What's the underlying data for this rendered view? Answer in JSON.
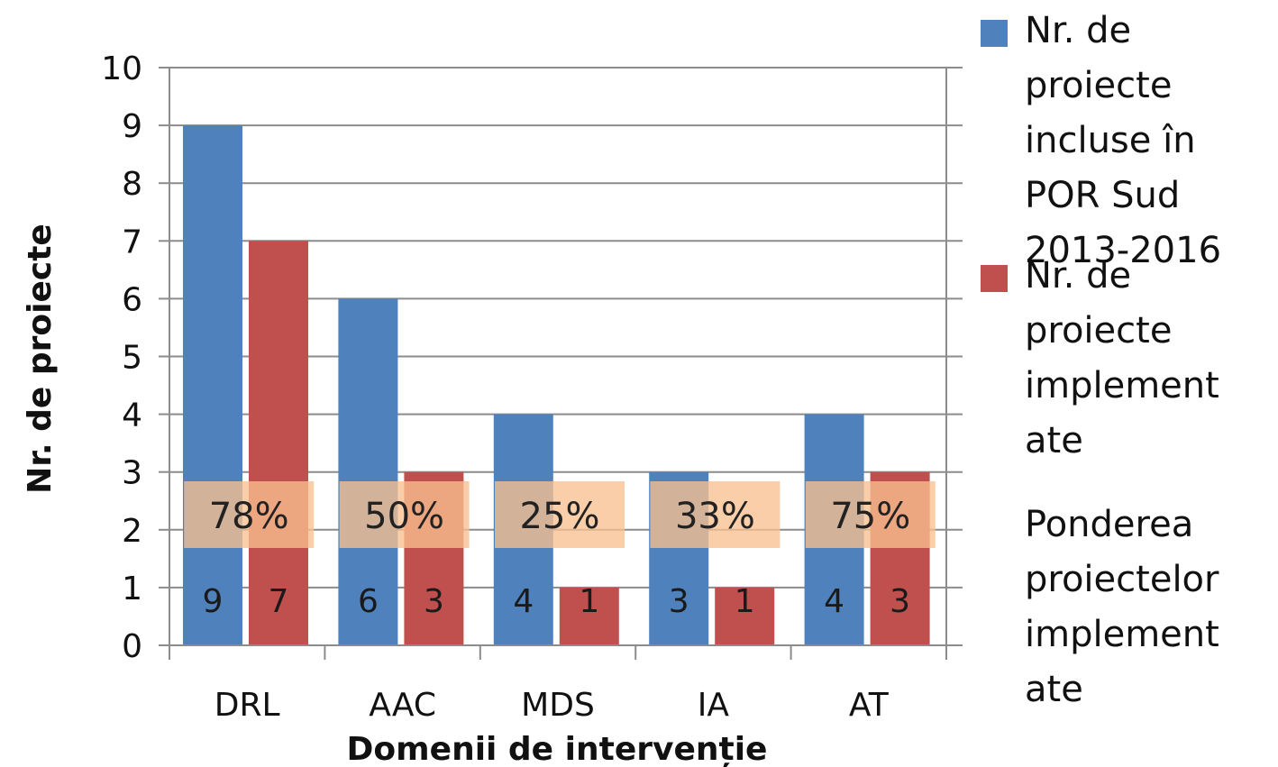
{
  "chart_data": {
    "type": "bar",
    "xlabel": "Domenii de intervenție",
    "ylabel": "Nr. de proiecte",
    "ylim": [
      0,
      10
    ],
    "yticks": [
      "0",
      "1",
      "2",
      "3",
      "4",
      "5",
      "6",
      "7",
      "8",
      "9",
      "10"
    ],
    "categories": [
      "DRL",
      "AAC",
      "MDS",
      "IA",
      "AT"
    ],
    "series": [
      {
        "name": "Nr. de proiecte incluse în POR Sud 2013-2016",
        "color": "#4f81bd",
        "values": [
          9,
          6,
          4,
          3,
          4
        ]
      },
      {
        "name": "Nr. de proiecte implement ate",
        "color": "#c0504d",
        "values": [
          7,
          3,
          1,
          1,
          3
        ]
      }
    ],
    "share_series": {
      "name": "Ponderea proiectelor implement ate",
      "color": "#f9c090",
      "labels": [
        "78%",
        "50%",
        "25%",
        "33%",
        "75%"
      ]
    },
    "grid": true,
    "legend": "right"
  },
  "legend": {
    "incluse": "Nr. de proiecte incluse în POR Sud 2013-2016",
    "implementate": "Nr. de proiecte implement ate",
    "ponderea": "Ponderea proiectelor implement ate"
  }
}
